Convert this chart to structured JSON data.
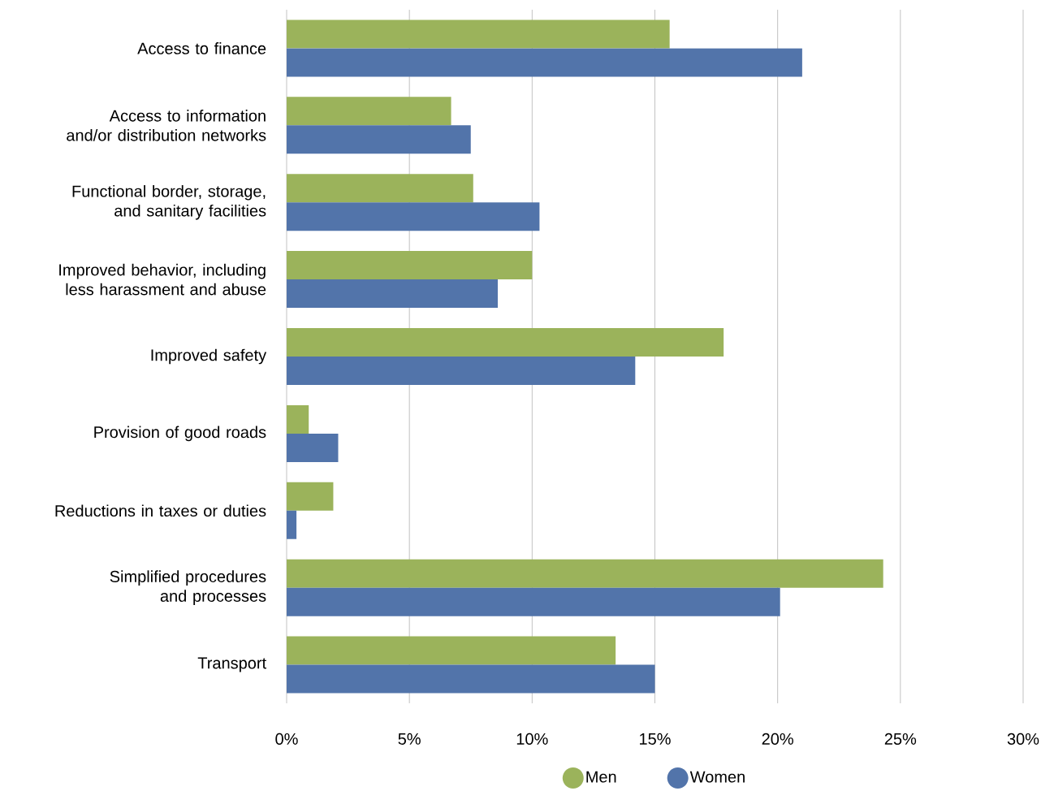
{
  "chart_data": {
    "type": "bar",
    "orientation": "horizontal",
    "categories": [
      "Access to finance",
      "Access to information and/or distribution networks",
      "Functional border, storage, and sanitary facilities",
      "Improved behavior, including less harassment  and abuse",
      "Improved safety",
      "Provision of good roads",
      "Reductions in taxes or duties",
      "Simplified procedures and processes",
      "Transport"
    ],
    "series": [
      {
        "name": "Men",
        "color": "#9bb35b",
        "values": [
          15.6,
          6.7,
          7.6,
          10.0,
          17.8,
          0.9,
          1.9,
          24.3,
          13.4
        ]
      },
      {
        "name": "Women",
        "color": "#5274aa",
        "values": [
          21.0,
          7.5,
          10.3,
          8.6,
          14.2,
          2.1,
          0.4,
          20.1,
          15.0
        ]
      }
    ],
    "xlim": [
      0,
      30
    ],
    "xticks": [
      {
        "value": 0,
        "label": "0%"
      },
      {
        "value": 5,
        "label": "5%"
      },
      {
        "value": 10,
        "label": "10%"
      },
      {
        "value": 15,
        "label": "15%"
      },
      {
        "value": 20,
        "label": "20%"
      },
      {
        "value": 25,
        "label": "25%"
      },
      {
        "value": 30,
        "label": "30%"
      }
    ],
    "grid": "x",
    "legend": "bottom"
  }
}
